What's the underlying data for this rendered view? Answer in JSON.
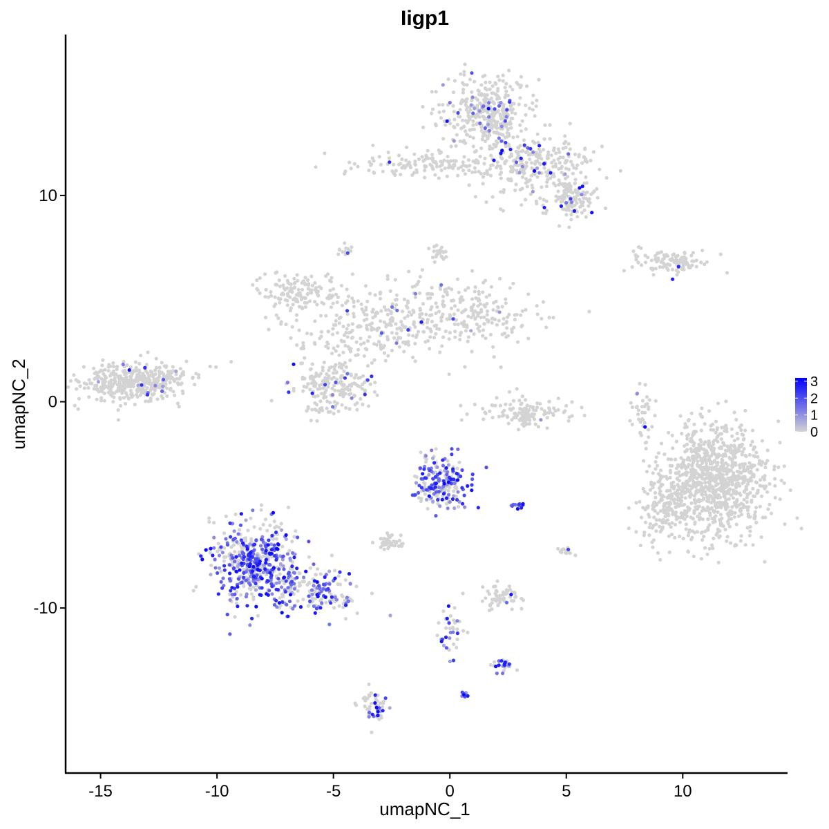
{
  "chart_data": {
    "type": "scatter",
    "title": "Iigp1",
    "xlabel": "umapNC_1",
    "ylabel": "umapNC_2",
    "xlim": [
      -16.5,
      14.5
    ],
    "ylim": [
      -18.0,
      17.8
    ],
    "x_ticks": [
      -15,
      -10,
      -5,
      0,
      5,
      10
    ],
    "x_tick_labels": [
      "-15",
      "-10",
      "-5",
      "0",
      "5",
      "10"
    ],
    "y_ticks": [
      -10,
      0,
      10
    ],
    "y_tick_labels": [
      "-10",
      "0",
      "10"
    ],
    "grid": false,
    "legend": {
      "placement": "right",
      "type": "colorbar",
      "ticks": [
        0,
        1,
        2,
        3
      ],
      "tick_labels": [
        "0",
        "1",
        "2",
        "3"
      ],
      "range": [
        0,
        3.2
      ]
    },
    "colors": {
      "low": "#d3d3d3",
      "high": "#0000ff"
    },
    "clusters": [
      {
        "cx": -13.6,
        "cy": 1.0,
        "sx": 1.3,
        "sy": 0.55,
        "n": 420,
        "expr": 0.02
      },
      {
        "cx": 1.5,
        "cy": 14.0,
        "sx": 1.1,
        "sy": 1.0,
        "n": 380,
        "expr": 0.08
      },
      {
        "cx": 3.8,
        "cy": 11.5,
        "sx": 1.4,
        "sy": 0.9,
        "n": 260,
        "expr": 0.08
      },
      {
        "cx": 5.3,
        "cy": 9.8,
        "sx": 0.6,
        "sy": 0.5,
        "n": 120,
        "expr": 0.05
      },
      {
        "cx": -0.8,
        "cy": 11.5,
        "sx": 2.2,
        "sy": 0.35,
        "n": 150,
        "expr": 0.02
      },
      {
        "cx": 9.5,
        "cy": 6.8,
        "sx": 1.0,
        "sy": 0.3,
        "n": 110,
        "expr": 0.02
      },
      {
        "cx": -6.5,
        "cy": 5.3,
        "sx": 1.1,
        "sy": 0.6,
        "n": 140,
        "expr": 0.0
      },
      {
        "cx": -3.5,
        "cy": 3.5,
        "sx": 1.8,
        "sy": 1.0,
        "n": 220,
        "expr": 0.02
      },
      {
        "cx": 0.5,
        "cy": 4.3,
        "sx": 1.8,
        "sy": 1.0,
        "n": 260,
        "expr": 0.02
      },
      {
        "cx": -5.0,
        "cy": 0.7,
        "sx": 1.0,
        "sy": 0.8,
        "n": 200,
        "expr": 0.05
      },
      {
        "cx": 3.3,
        "cy": -0.5,
        "sx": 1.2,
        "sy": 0.4,
        "n": 110,
        "expr": 0.02
      },
      {
        "cx": 11.3,
        "cy": -3.8,
        "sx": 1.4,
        "sy": 1.6,
        "n": 1000,
        "expr": 0.0
      },
      {
        "cx": 9.2,
        "cy": -5.3,
        "sx": 0.7,
        "sy": 0.9,
        "n": 120,
        "expr": 0.0
      },
      {
        "cx": -8.4,
        "cy": -7.8,
        "sx": 1.1,
        "sy": 1.2,
        "n": 520,
        "expr": 0.55
      },
      {
        "cx": -5.8,
        "cy": -9.2,
        "sx": 1.2,
        "sy": 0.6,
        "n": 180,
        "expr": 0.5
      },
      {
        "cx": -0.4,
        "cy": -3.9,
        "sx": 0.7,
        "sy": 0.7,
        "n": 220,
        "expr": 0.55
      },
      {
        "cx": -2.6,
        "cy": -6.8,
        "sx": 0.3,
        "sy": 0.2,
        "n": 45,
        "expr": 0.0
      },
      {
        "cx": 2.2,
        "cy": -9.5,
        "sx": 0.4,
        "sy": 0.4,
        "n": 60,
        "expr": 0.05
      },
      {
        "cx": -3.3,
        "cy": -14.8,
        "sx": 0.3,
        "sy": 0.6,
        "n": 55,
        "expr": 0.3
      },
      {
        "cx": 3.2,
        "cy": -0.8,
        "sx": 0.2,
        "sy": 0.4,
        "n": 30,
        "expr": 0.0
      },
      {
        "cx": 8.3,
        "cy": -0.5,
        "sx": 0.25,
        "sy": 0.7,
        "n": 35,
        "expr": 0.05
      },
      {
        "cx": 2.3,
        "cy": -12.7,
        "sx": 0.25,
        "sy": 0.2,
        "n": 30,
        "expr": 0.6
      },
      {
        "cx": 0.0,
        "cy": -11.0,
        "sx": 0.35,
        "sy": 0.9,
        "n": 40,
        "expr": 0.35
      },
      {
        "cx": -0.5,
        "cy": 7.2,
        "sx": 0.2,
        "sy": 0.2,
        "n": 20,
        "expr": 0.0
      },
      {
        "cx": -4.5,
        "cy": 7.4,
        "sx": 0.2,
        "sy": 0.2,
        "n": 15,
        "expr": 0.1
      },
      {
        "cx": 5.0,
        "cy": -7.3,
        "sx": 0.2,
        "sy": 0.15,
        "n": 15,
        "expr": 0.1
      },
      {
        "cx": 2.9,
        "cy": -5.0,
        "sx": 0.15,
        "sy": 0.1,
        "n": 12,
        "expr": 0.9
      },
      {
        "cx": 0.6,
        "cy": -14.2,
        "sx": 0.1,
        "sy": 0.1,
        "n": 8,
        "expr": 0.9
      }
    ]
  }
}
